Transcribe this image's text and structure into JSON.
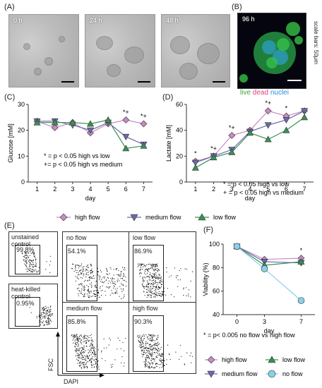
{
  "panels": {
    "A": "(A)",
    "B": "(B)",
    "C": "(C)",
    "D": "(D)",
    "E": "(E)",
    "F": "(F)"
  },
  "micro": {
    "times": [
      "0 h",
      "24 h",
      "48 h"
    ],
    "fluor_time": "96 h",
    "scale_note": "scale bars: 50µm",
    "stain_live": "live",
    "stain_dead": "dead",
    "stain_nuclei": "nuclei",
    "colors": {
      "live": "#3aa63a",
      "dead": "#e0407a",
      "nuclei": "#2a8fd8"
    }
  },
  "chart_data": [
    {
      "type": "line",
      "title": "",
      "xlabel": "day",
      "ylabel": "Glucose [mM]",
      "x": [
        1,
        2,
        3,
        4,
        5,
        6,
        7
      ],
      "xlim": [
        0.5,
        7.5
      ],
      "ylim": [
        0,
        30
      ],
      "yticks": [
        0,
        10,
        20,
        30
      ],
      "series": [
        {
          "name": "high flow",
          "marker": "diamond",
          "color": "#c98ac4",
          "values": [
            23.5,
            21,
            23,
            19,
            22.5,
            24,
            22.5
          ]
        },
        {
          "name": "medium flow",
          "marker": "triangle-down",
          "color": "#6a6aa8",
          "values": [
            23.5,
            23.5,
            22,
            20,
            23,
            17.5,
            14.5
          ]
        },
        {
          "name": "low flow",
          "marker": "triangle-up",
          "color": "#3a8f55",
          "values": [
            23,
            23,
            23,
            22.5,
            24,
            13,
            14
          ]
        }
      ],
      "sig_marks": [
        {
          "x": 6,
          "label": "*+"
        },
        {
          "x": 7,
          "label": "*+"
        }
      ],
      "notes": [
        "* = p < 0.05 high vs low",
        "+= p < 0.05 high vs medium"
      ]
    },
    {
      "type": "line",
      "title": "",
      "xlabel": "day",
      "ylabel": "Lactate [mM]",
      "x": [
        1,
        2,
        3,
        4,
        5,
        6,
        7
      ],
      "xlim": [
        0.5,
        7.5
      ],
      "ylim": [
        0,
        60
      ],
      "yticks": [
        0,
        20,
        40,
        60
      ],
      "series": [
        {
          "name": "high flow",
          "marker": "diamond",
          "color": "#c98ac4",
          "values": [
            16,
            20,
            36,
            40,
            55,
            51,
            55
          ]
        },
        {
          "name": "medium flow",
          "marker": "triangle-down",
          "color": "#6a6aa8",
          "values": [
            15,
            20,
            25,
            39,
            44,
            48,
            55
          ]
        },
        {
          "name": "low flow",
          "marker": "triangle-up",
          "color": "#3a8f55",
          "values": [
            11,
            19,
            23,
            38,
            33,
            40,
            50
          ]
        }
      ],
      "sig_marks": [
        {
          "x": 1,
          "label": "*"
        },
        {
          "x": 2,
          "label": "*+"
        },
        {
          "x": 3,
          "label": "*+"
        },
        {
          "x": 5,
          "label": "*+"
        },
        {
          "x": 6,
          "label": "*"
        }
      ],
      "notes": [
        "* = p < 0.05 high vs low",
        "+ = p < 0.05 high vs medium"
      ]
    },
    {
      "type": "line",
      "title": "",
      "xlabel": "day",
      "ylabel": "Viability (%)",
      "x": [
        0,
        3,
        7
      ],
      "xlim": [
        -1.5,
        8.5
      ],
      "ylim": [
        40,
        100
      ],
      "yticks": [
        40,
        60,
        80,
        100
      ],
      "series": [
        {
          "name": "high flow",
          "marker": "diamond",
          "color": "#c98ac4",
          "values": [
            98,
            87,
            88
          ]
        },
        {
          "name": "medium flow",
          "marker": "triangle-down",
          "color": "#6a6aa8",
          "values": [
            98,
            85,
            84
          ]
        },
        {
          "name": "low flow",
          "marker": "triangle-up",
          "color": "#3a8f55",
          "values": [
            98,
            82,
            85
          ]
        },
        {
          "name": "no flow",
          "marker": "circle",
          "color": "#8ad0e8",
          "values": [
            98,
            79,
            52
          ]
        }
      ],
      "sig_marks": [
        {
          "x": 7,
          "label": "*"
        }
      ],
      "notes": [
        "* = p< 0.005 no flow vs high flow"
      ]
    }
  ],
  "legend_cd": [
    "high flow",
    "medium flow",
    "low flow"
  ],
  "legend_f": [
    "high flow",
    "low flow",
    "medium flow",
    "no flow"
  ],
  "flow": {
    "axis_y": "FSC",
    "axis_x": "DAPI",
    "controls": [
      {
        "title": "unstained control",
        "pct": "99.8%"
      },
      {
        "title": "heat-killed control",
        "pct": "0.95%"
      }
    ],
    "samples": [
      {
        "title": "no flow",
        "pct": "54.1%"
      },
      {
        "title": "low flow",
        "pct": "86.9%"
      },
      {
        "title": "medium flow",
        "pct": "85.8%"
      },
      {
        "title": "high flow",
        "pct": "90.3%"
      }
    ]
  }
}
